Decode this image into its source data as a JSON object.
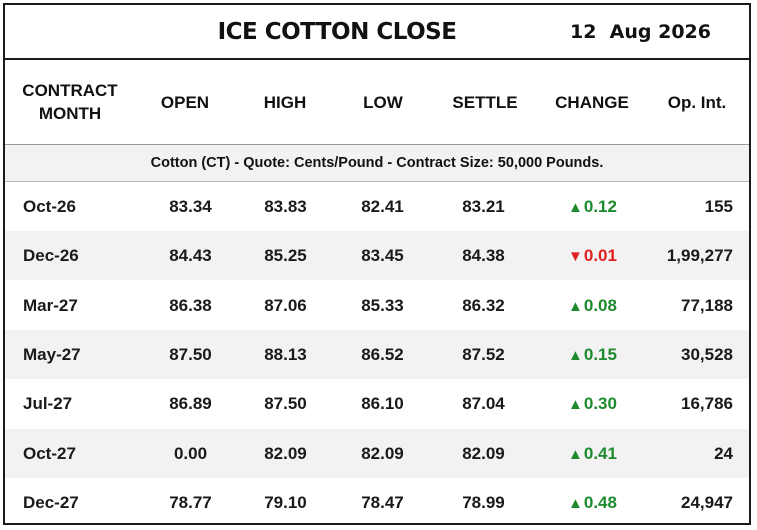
{
  "header": {
    "title": "ICE COTTON CLOSE",
    "date": "12  Aug 2026"
  },
  "columns": {
    "month": "CONTRACT\nMONTH",
    "open": "OPEN",
    "high": "HIGH",
    "low": "LOW",
    "settle": "SETTLE",
    "change": "CHANGE",
    "oi": "Op. Int."
  },
  "note": "Cotton (CT) - Quote: Cents/Pound - Contract Size: 50,000 Pounds.",
  "colors": {
    "up": "#1e8a2e",
    "down": "#e02020",
    "alt_row": "#f2f2f2"
  },
  "rows": [
    {
      "month": "Oct-26",
      "open": "83.34",
      "high": "83.83",
      "low": "82.41",
      "settle": "83.21",
      "direction": "up",
      "arrow": "▲",
      "change": "0.12",
      "oi": "155"
    },
    {
      "month": "Dec-26",
      "open": "84.43",
      "high": "85.25",
      "low": "83.45",
      "settle": "84.38",
      "direction": "down",
      "arrow": "▼",
      "change": "0.01",
      "oi": "1,99,277"
    },
    {
      "month": "Mar-27",
      "open": "86.38",
      "high": "87.06",
      "low": "85.33",
      "settle": "86.32",
      "direction": "up",
      "arrow": "▲",
      "change": "0.08",
      "oi": "77,188"
    },
    {
      "month": "May-27",
      "open": "87.50",
      "high": "88.13",
      "low": "86.52",
      "settle": "87.52",
      "direction": "up",
      "arrow": "▲",
      "change": "0.15",
      "oi": "30,528"
    },
    {
      "month": "Jul-27",
      "open": "86.89",
      "high": "87.50",
      "low": "86.10",
      "settle": "87.04",
      "direction": "up",
      "arrow": "▲",
      "change": "0.30",
      "oi": "16,786"
    },
    {
      "month": "Oct-27",
      "open": "0.00",
      "high": "82.09",
      "low": "82.09",
      "settle": "82.09",
      "direction": "up",
      "arrow": "▲",
      "change": "0.41",
      "oi": "24"
    },
    {
      "month": "Dec-27",
      "open": "78.77",
      "high": "79.10",
      "low": "78.47",
      "settle": "78.99",
      "direction": "up",
      "arrow": "▲",
      "change": "0.48",
      "oi": "24,947"
    }
  ]
}
